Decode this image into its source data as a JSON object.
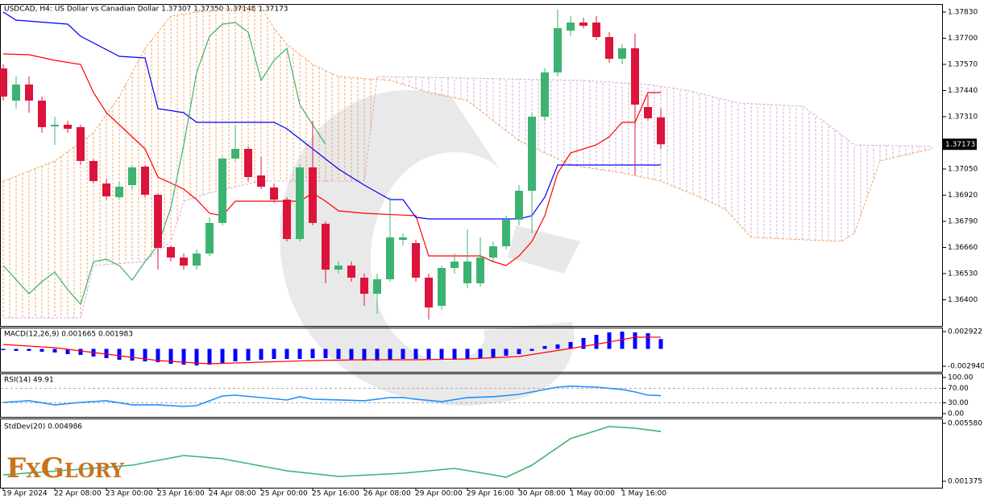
{
  "logo": "FxGlory",
  "chart_data": [
    {
      "type": "candlestick",
      "title": "USDCAD, H4:  US Dollar vs Canadian Dollar  1.37307 1.37350 1.37148 1.37173",
      "categories": [
        "19 Apr 2024",
        null,
        null,
        null,
        "22 Apr 08:00",
        null,
        null,
        null,
        "23 Apr 00:00",
        null,
        null,
        null,
        "23 Apr 16:00",
        null,
        null,
        null,
        "24 Apr 08:00",
        null,
        null,
        null,
        "25 Apr 00:00",
        null,
        null,
        null,
        "25 Apr 16:00",
        null,
        null,
        null,
        "26 Apr 08:00",
        null,
        null,
        null,
        "29 Apr 00:00",
        null,
        null,
        null,
        "29 Apr 16:00",
        null,
        null,
        null,
        "30 Apr 08:00",
        null,
        null,
        null,
        "1 May 00:00",
        null,
        null,
        null,
        "1 May 16:00",
        null,
        null,
        null
      ],
      "open": [
        1.3755,
        1.3739,
        1.3747,
        1.3739,
        1.37262,
        1.3727,
        1.37258,
        1.3709,
        1.36978,
        1.3691,
        1.3697,
        1.37062,
        1.36922,
        1.36662,
        1.3661,
        1.3657,
        1.3663,
        1.36782,
        1.37102,
        1.3715,
        1.37018,
        1.36958,
        1.36898,
        1.36702,
        1.37058,
        1.36778,
        1.3655,
        1.3657,
        1.3651,
        1.3643,
        1.36502,
        1.36698,
        1.36682,
        1.3651,
        1.3637,
        1.36558,
        1.36482,
        1.36482,
        1.3661,
        1.36666,
        1.36798,
        1.36942,
        1.3731,
        1.3753,
        1.37738,
        1.37778,
        1.37778,
        1.37706,
        1.37598,
        1.3765,
        1.37358,
        1.37307
      ],
      "high": [
        1.3757,
        1.3751,
        1.3751,
        1.3741,
        1.3731,
        1.3729,
        1.3727,
        1.37098,
        1.37002,
        1.3699,
        1.3707,
        1.3707,
        1.3693,
        1.3667,
        1.3663,
        1.3665,
        1.3681,
        1.3711,
        1.3727,
        1.37162,
        1.3711,
        1.36978,
        1.3691,
        1.3707,
        1.3729,
        1.3679,
        1.3659,
        1.3659,
        1.3653,
        1.3653,
        1.3691,
        1.3673,
        1.36698,
        1.3653,
        1.3657,
        1.3663,
        1.3675,
        1.3671,
        1.3669,
        1.36818,
        1.3697,
        1.3733,
        1.3755,
        1.37842,
        1.3781,
        1.37802,
        1.3781,
        1.3773,
        1.3767,
        1.37722,
        1.37418,
        1.3735
      ],
      "low": [
        1.3739,
        1.3735,
        1.3733,
        1.3723,
        1.3717,
        1.3723,
        1.3707,
        1.36978,
        1.36898,
        1.36898,
        1.3695,
        1.3691,
        1.3655,
        1.3659,
        1.3655,
        1.3655,
        1.36618,
        1.3677,
        1.3709,
        1.3699,
        1.3695,
        1.36882,
        1.3669,
        1.3669,
        1.3677,
        1.36482,
        1.3653,
        1.3649,
        1.3637,
        1.3633,
        1.3649,
        1.3667,
        1.3649,
        1.36302,
        1.3635,
        1.3653,
        1.36458,
        1.36466,
        1.3659,
        1.3665,
        1.3677,
        1.3673,
        1.3729,
        1.3751,
        1.3771,
        1.3775,
        1.3769,
        1.37578,
        1.3757,
        1.37018,
        1.3729,
        1.37148
      ],
      "close": [
        1.3741,
        1.3747,
        1.3739,
        1.37258,
        1.3727,
        1.3725,
        1.3709,
        1.3699,
        1.36914,
        1.36962,
        1.37058,
        1.36922,
        1.36658,
        1.3661,
        1.3657,
        1.3663,
        1.36782,
        1.37102,
        1.3715,
        1.3701,
        1.36962,
        1.36898,
        1.36702,
        1.37058,
        1.36782,
        1.3655,
        1.3657,
        1.3651,
        1.3643,
        1.36502,
        1.3671,
        1.3671,
        1.3651,
        1.36362,
        1.36558,
        1.3659,
        1.3659,
        1.3661,
        1.36666,
        1.36798,
        1.36942,
        1.3731,
        1.3753,
        1.3775,
        1.37778,
        1.37762,
        1.37706,
        1.37598,
        1.3765,
        1.3737,
        1.37302,
        1.37173
      ],
      "up_color": "#3cb371",
      "down_color": "#dc143c",
      "lines": [
        {
          "color": "#ff0000",
          "x": [
            0,
            2,
            4,
            6,
            7,
            8,
            10,
            11,
            12,
            14,
            15,
            16,
            17,
            18,
            23,
            24,
            25,
            26,
            28,
            32,
            33,
            37,
            38,
            39,
            40,
            41,
            42,
            43,
            44,
            46,
            47,
            48,
            49,
            50,
            51
          ],
          "values": [
            1.37622,
            1.37618,
            1.3759,
            1.3757,
            1.3743,
            1.3733,
            1.3721,
            1.3715,
            1.3701,
            1.3695,
            1.36898,
            1.3683,
            1.36818,
            1.3689,
            1.3689,
            1.3693,
            1.3689,
            1.36842,
            1.3683,
            1.36818,
            1.36618,
            1.36618,
            1.3659,
            1.3657,
            1.36618,
            1.3669,
            1.36818,
            1.3703,
            1.3713,
            1.3717,
            1.3721,
            1.37282,
            1.37282,
            1.3743,
            1.3743
          ]
        },
        {
          "color": "#0000ff",
          "x": [
            0,
            1,
            5,
            6,
            9,
            11,
            12,
            14,
            15,
            21,
            22,
            24,
            26,
            28,
            30,
            31,
            32,
            33,
            40,
            41,
            42,
            43,
            51
          ],
          "values": [
            1.3783,
            1.3779,
            1.3777,
            1.3771,
            1.3761,
            1.37602,
            1.3735,
            1.3733,
            1.37282,
            1.37282,
            1.3725,
            1.3715,
            1.3705,
            1.3697,
            1.36898,
            1.36898,
            1.3681,
            1.36802,
            1.36802,
            1.36818,
            1.3691,
            1.3707,
            1.3707
          ]
        },
        {
          "color": "#3cb371",
          "x": [
            0,
            2,
            3,
            4,
            5,
            6,
            7,
            8,
            9,
            10,
            11,
            12,
            13,
            14,
            15,
            16,
            17,
            18,
            19,
            20,
            21,
            22,
            23,
            24,
            25
          ],
          "values": [
            1.3657,
            1.3643,
            1.3649,
            1.36538,
            1.3645,
            1.36378,
            1.3659,
            1.36602,
            1.3657,
            1.36498,
            1.3659,
            1.3667,
            1.36858,
            1.3717,
            1.3753,
            1.3771,
            1.3777,
            1.37778,
            1.3773,
            1.3749,
            1.3759,
            1.3765,
            1.3737,
            1.3727,
            1.37173
          ]
        }
      ],
      "cloud": {
        "a": {
          "color": "#f4a460",
          "x": [
            0,
            4,
            7,
            9,
            11,
            13,
            15,
            18,
            20,
            21,
            22,
            24,
            26,
            30,
            33,
            36,
            38,
            40,
            42,
            44,
            48,
            51,
            54,
            56,
            58,
            65,
            66,
            68,
            72
          ],
          "values": [
            1.3699,
            1.3709,
            1.3723,
            1.3741,
            1.3765,
            1.3781,
            1.3783,
            1.3785,
            1.37858,
            1.3775,
            1.3767,
            1.3757,
            1.3751,
            1.3749,
            1.3743,
            1.3739,
            1.3729,
            1.3719,
            1.3713,
            1.3707,
            1.3703,
            1.3699,
            1.3691,
            1.3685,
            1.3671,
            1.3669,
            1.3673,
            1.3709,
            1.3715
          ]
        },
        "b": {
          "color": "#d8a8d8",
          "x": [
            0,
            6,
            7,
            11,
            13,
            14,
            16,
            18,
            20,
            28,
            29,
            36,
            45,
            50,
            53,
            57,
            62,
            64,
            66,
            72
          ],
          "values": [
            1.3631,
            1.3631,
            1.3657,
            1.3659,
            1.3669,
            1.3689,
            1.3693,
            1.36962,
            1.3699,
            1.3699,
            1.3751,
            1.37502,
            1.3749,
            1.3747,
            1.37442,
            1.37378,
            1.37362,
            1.3727,
            1.3717,
            1.37162
          ]
        }
      },
      "ylim": [
        1.3627,
        1.3787
      ],
      "yticks": [
        {
          "value": 1.3783,
          "label": "1.37830"
        },
        {
          "value": 1.377,
          "label": "1.37700"
        },
        {
          "value": 1.3757,
          "label": "1.37570"
        },
        {
          "value": 1.3744,
          "label": "1.37440"
        },
        {
          "value": 1.3731,
          "label": "1.37310"
        },
        {
          "value": 1.3705,
          "label": "1.37050"
        },
        {
          "value": 1.3692,
          "label": "1.36920"
        },
        {
          "value": 1.3679,
          "label": "1.36790"
        },
        {
          "value": 1.3666,
          "label": "1.36660"
        },
        {
          "value": 1.3653,
          "label": "1.36530"
        },
        {
          "value": 1.364,
          "label": "1.36400"
        }
      ]
    },
    {
      "type": "macd",
      "label": "MACD(12,26,9) 0.001665 0.001983",
      "color": "#0000ff",
      "values": [
        -0.000204,
        -0.000341,
        -0.000341,
        -0.000477,
        -0.000613,
        -0.000886,
        -0.001022,
        -0.001295,
        -0.001567,
        -0.00184,
        -0.001976,
        -0.002113,
        -0.002249,
        -0.002522,
        -0.002658,
        -0.002794,
        -0.002658,
        -0.002386,
        -0.002113,
        -0.001976,
        -0.00184,
        -0.001704,
        -0.001704,
        -0.001704,
        -0.001567,
        -0.001567,
        -0.001704,
        -0.00184,
        -0.001976,
        -0.001976,
        -0.00184,
        -0.001704,
        -0.001704,
        -0.001704,
        -0.00184,
        -0.00184,
        -0.001704,
        -0.001567,
        -0.001431,
        -0.001159,
        -0.000886,
        -0.000341,
        0.000477,
        0.00075,
        0.001158,
        0.00184,
        0.002385,
        0.002794,
        0.00293,
        0.002794,
        0.002658,
        0.001665
      ],
      "signal": {
        "color": "#ff0000",
        "x": [
          0,
          4,
          8,
          12,
          16,
          20,
          24,
          28,
          32,
          36,
          40,
          44,
          47,
          49,
          51
        ],
        "values": [
          0.00075,
          0.000204,
          -0.000886,
          -0.001976,
          -0.002522,
          -0.002249,
          -0.001976,
          -0.00184,
          -0.00184,
          -0.001704,
          -0.001295,
          6.8e-05,
          0.001158,
          0.001976,
          0.001983
        ]
      },
      "ylim": [
        -0.00388,
        0.00361
      ],
      "yticks": [
        0.002922,
        {
          "value": -0.00294,
          "label": "-0.002940"
        }
      ]
    },
    {
      "type": "line",
      "label": "RSI(14) 49.91",
      "series": [
        {
          "color": "#1e90ff",
          "x": [
            0,
            2,
            4,
            6,
            8,
            10,
            12,
            14,
            15,
            17,
            18,
            20,
            22,
            23,
            24,
            26,
            28,
            30,
            31,
            32,
            34,
            36,
            38,
            40,
            42,
            43,
            44,
            46,
            48,
            49,
            50,
            51
          ],
          "values": [
            31.1,
            35.6,
            24.4,
            31.1,
            35.6,
            24.4,
            24.4,
            20.0,
            22.2,
            48.9,
            51.1,
            44.4,
            37.8,
            46.7,
            40.0,
            37.8,
            35.6,
            44.4,
            44.4,
            40.0,
            33.3,
            44.4,
            46.7,
            53.3,
            66.7,
            73.3,
            75.6,
            73.3,
            66.7,
            60.0,
            51.1,
            49.91
          ]
        }
      ],
      "ylim": [
        -8.9,
        111.1
      ],
      "levels": [
        70,
        30
      ],
      "yticks": [
        {
          "value": 100,
          "label": "100.00"
        },
        {
          "value": 70,
          "label": "70.00"
        },
        {
          "value": 30,
          "label": "30.00"
        },
        {
          "value": 0,
          "label": "0.00"
        }
      ]
    },
    {
      "type": "line",
      "label": "StdDev(20) 0.004986",
      "series": [
        {
          "color": "#3cb371",
          "x": [
            0,
            6,
            10,
            14,
            17,
            22,
            26,
            31,
            35,
            38,
            39,
            41,
            44,
            47,
            49,
            51
          ],
          "values": [
            0.001842,
            0.002251,
            0.002543,
            0.003244,
            0.00301,
            0.002134,
            0.001725,
            0.001959,
            0.002309,
            0.001842,
            0.001667,
            0.002543,
            0.00447,
            0.005346,
            0.005229,
            0.004986
          ]
        }
      ],
      "ylim": [
        0.000908,
        0.00593
      ],
      "yticks": [
        {
          "value": 0.00558,
          "label": "0.005580"
        },
        0.001375
      ]
    }
  ]
}
